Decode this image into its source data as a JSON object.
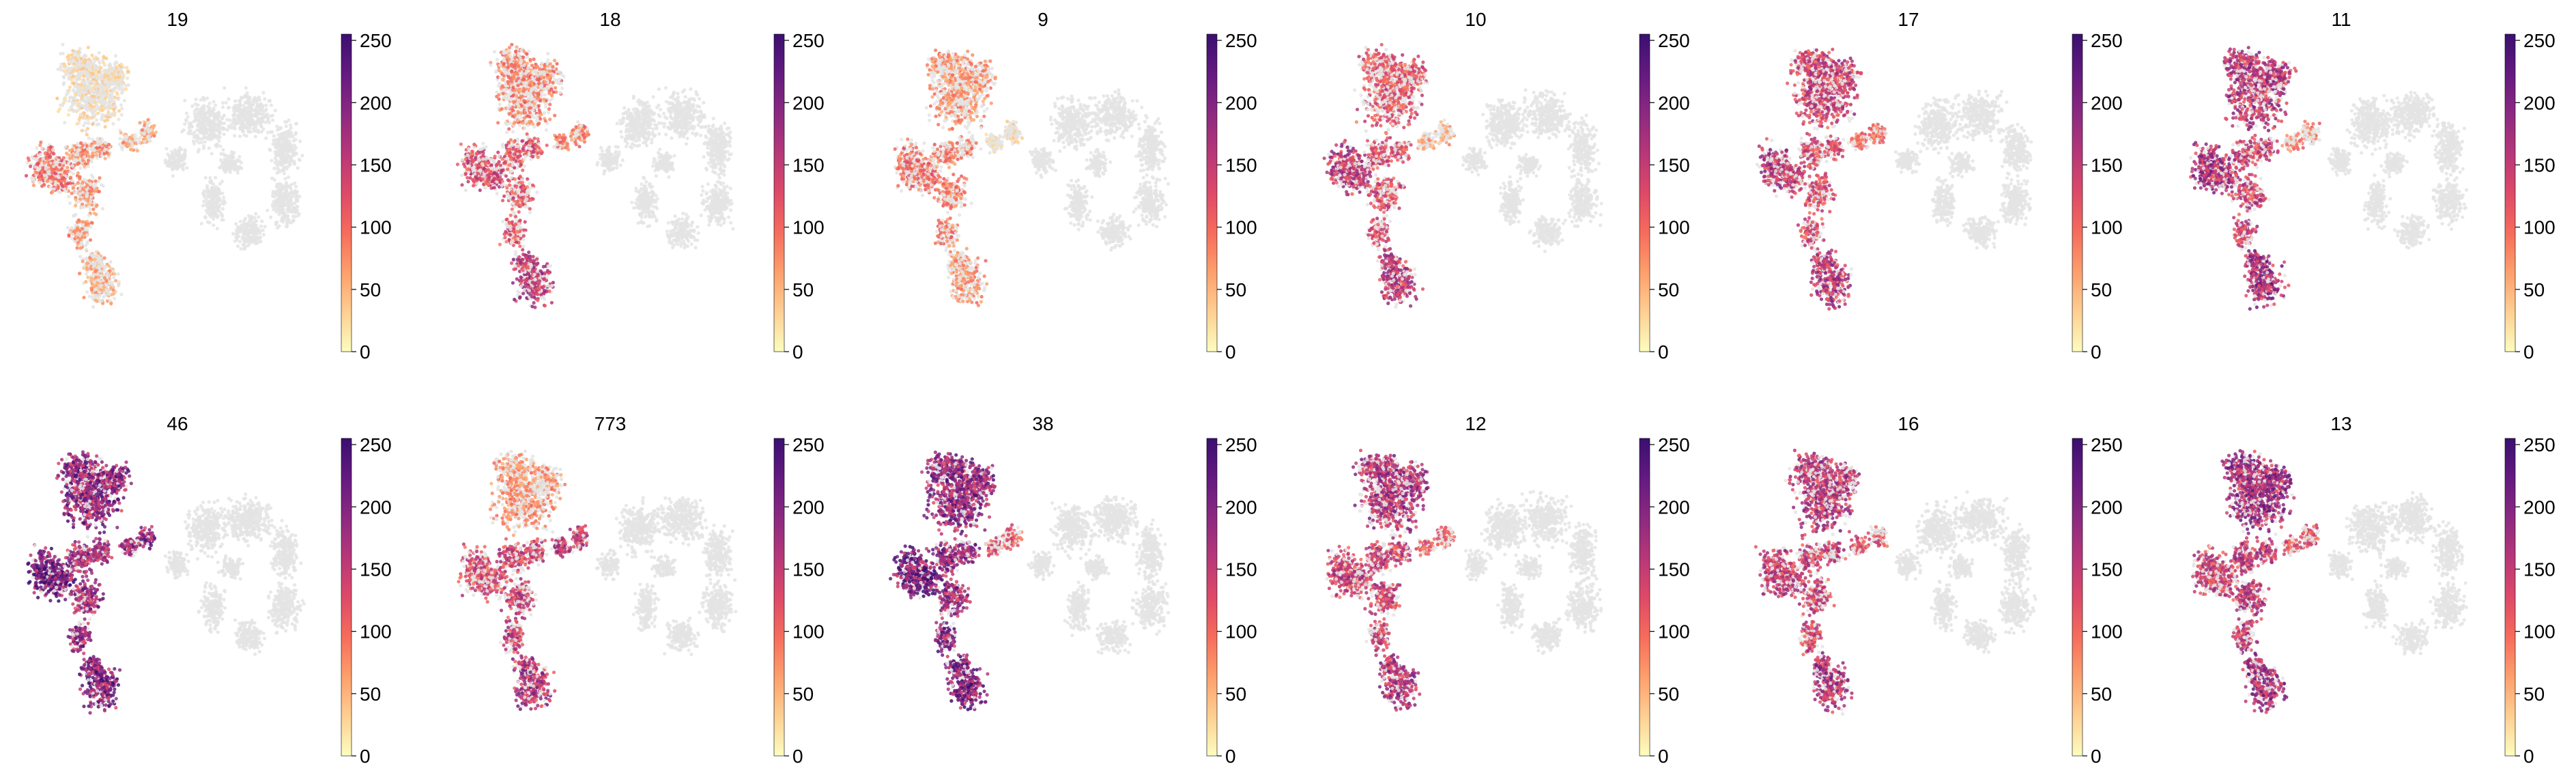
{
  "figure": {
    "rows": 2,
    "cols": 6
  },
  "colorbar": {
    "colormap": "magma_r",
    "stops": [
      "#fcfdbf",
      "#fecf92",
      "#fd9f6c",
      "#f66c5c",
      "#de4968",
      "#b73779",
      "#8c2981",
      "#641a80",
      "#3b0f70"
    ],
    "min": 0,
    "max": 255,
    "ticks": [
      0,
      50,
      100,
      150,
      200,
      250
    ]
  },
  "background_cell_color": "#e4e4e4",
  "chart_data": [
    {
      "type": "scatter",
      "title": "19",
      "intensity": 0.35,
      "regions": {
        "top_lobe": 0.15,
        "left_lobe": 0.45,
        "middle_stem": 0.35,
        "bottom_lobe": 0.28,
        "bridge": 0.3,
        "right_cluster": 0.0
      }
    },
    {
      "type": "scatter",
      "title": "18",
      "intensity": 0.5,
      "regions": {
        "top_lobe": 0.4,
        "left_lobe": 0.6,
        "middle_stem": 0.55,
        "bottom_lobe": 0.7,
        "bridge": 0.4,
        "right_cluster": 0.0
      }
    },
    {
      "type": "scatter",
      "title": "9",
      "intensity": 0.35,
      "regions": {
        "top_lobe": 0.35,
        "left_lobe": 0.45,
        "middle_stem": 0.4,
        "bottom_lobe": 0.35,
        "bridge": 0.15,
        "right_cluster": 0.0
      }
    },
    {
      "type": "scatter",
      "title": "10",
      "intensity": 0.55,
      "regions": {
        "top_lobe": 0.55,
        "left_lobe": 0.7,
        "middle_stem": 0.6,
        "bottom_lobe": 0.7,
        "bridge": 0.3,
        "right_cluster": 0.0
      }
    },
    {
      "type": "scatter",
      "title": "17",
      "intensity": 0.6,
      "regions": {
        "top_lobe": 0.65,
        "left_lobe": 0.7,
        "middle_stem": 0.6,
        "bottom_lobe": 0.72,
        "bridge": 0.45,
        "right_cluster": 0.0
      }
    },
    {
      "type": "scatter",
      "title": "11",
      "intensity": 0.65,
      "regions": {
        "top_lobe": 0.72,
        "left_lobe": 0.75,
        "middle_stem": 0.65,
        "bottom_lobe": 0.78,
        "bridge": 0.4,
        "right_cluster": 0.0
      }
    },
    {
      "type": "scatter",
      "title": "46",
      "intensity": 0.85,
      "regions": {
        "top_lobe": 0.85,
        "left_lobe": 0.95,
        "middle_stem": 0.8,
        "bottom_lobe": 0.9,
        "bridge": 0.85,
        "right_cluster": 0.0
      }
    },
    {
      "type": "scatter",
      "title": "773",
      "intensity": 0.55,
      "regions": {
        "top_lobe": 0.35,
        "left_lobe": 0.6,
        "middle_stem": 0.65,
        "bottom_lobe": 0.75,
        "bridge": 0.7,
        "right_cluster": 0.0
      }
    },
    {
      "type": "scatter",
      "title": "38",
      "intensity": 0.85,
      "regions": {
        "top_lobe": 0.85,
        "left_lobe": 0.95,
        "middle_stem": 0.85,
        "bottom_lobe": 0.92,
        "bridge": 0.55,
        "right_cluster": 0.0
      }
    },
    {
      "type": "scatter",
      "title": "12",
      "intensity": 0.65,
      "regions": {
        "top_lobe": 0.75,
        "left_lobe": 0.65,
        "middle_stem": 0.65,
        "bottom_lobe": 0.75,
        "bridge": 0.5,
        "right_cluster": 0.0
      }
    },
    {
      "type": "scatter",
      "title": "16",
      "intensity": 0.65,
      "regions": {
        "top_lobe": 0.72,
        "left_lobe": 0.65,
        "middle_stem": 0.65,
        "bottom_lobe": 0.75,
        "bridge": 0.55,
        "right_cluster": 0.0
      }
    },
    {
      "type": "scatter",
      "title": "13",
      "intensity": 0.7,
      "regions": {
        "top_lobe": 0.8,
        "left_lobe": 0.65,
        "middle_stem": 0.7,
        "bottom_lobe": 0.78,
        "bridge": 0.55,
        "right_cluster": 0.0
      }
    }
  ]
}
